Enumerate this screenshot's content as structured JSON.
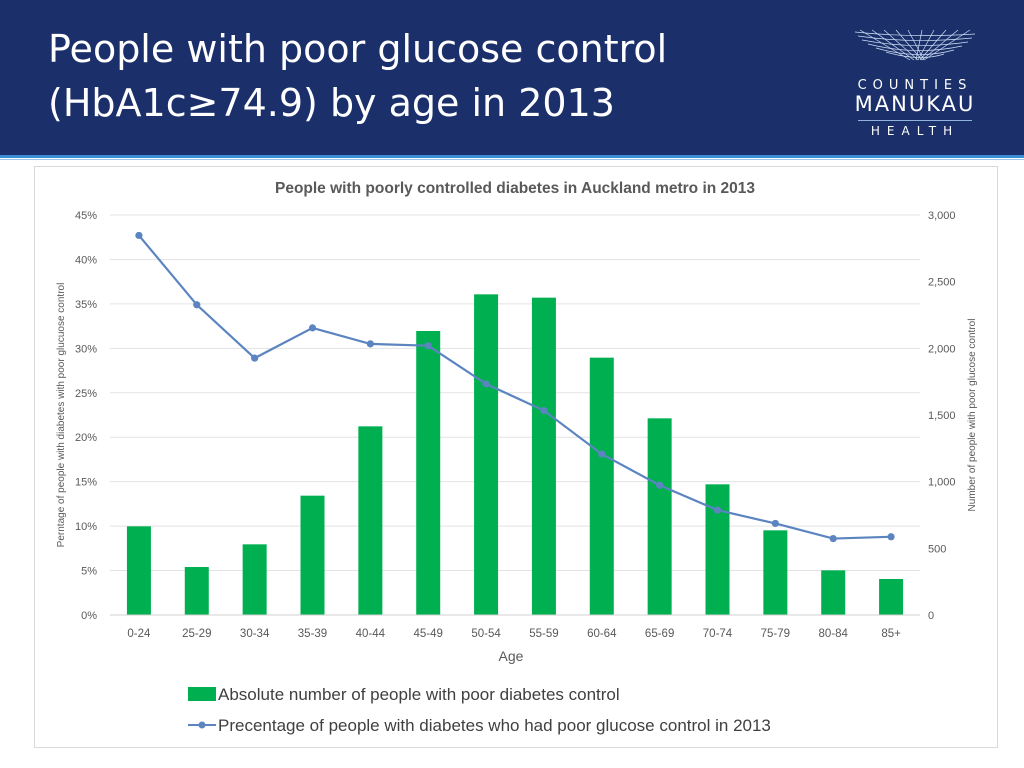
{
  "slide": {
    "title_line1": "People with poor glucose control",
    "title_line2": "(HbA1c≥74.9) by age in 2013"
  },
  "logo": {
    "word1": "COUNTIES",
    "word2": "MANUKAU",
    "word3": "HEALTH"
  },
  "colors": {
    "banner": "#1b2f6a",
    "bar": "#00b050",
    "line": "#5b84c0"
  },
  "chart_data": {
    "type": "bar",
    "title": "People with poorly controlled diabetes in Auckland metro in 2013",
    "xlabel": "Age",
    "ylabel_left": "Perntage of people with diabetes with poor glucuose control",
    "ylabel_right": "Number of people with poor glucose control",
    "categories": [
      "0-24",
      "25-29",
      "30-34",
      "35-39",
      "40-44",
      "45-49",
      "50-54",
      "55-59",
      "60-64",
      "65-69",
      "70-74",
      "75-79",
      "80-84",
      "85+"
    ],
    "y_left_ticks": [
      "0%",
      "5%",
      "10%",
      "15%",
      "20%",
      "25%",
      "30%",
      "35%",
      "40%",
      "45%"
    ],
    "y_right_ticks": [
      "0",
      "500",
      "1,000",
      "1,500",
      "2,000",
      "2,500",
      "3,000"
    ],
    "ylim_left": [
      0,
      45
    ],
    "ylim_right": [
      0,
      3000
    ],
    "grid": true,
    "legend_position": "bottom",
    "series": [
      {
        "name": "Absolute number of people with poor diabetes control",
        "type": "bar",
        "axis": "right",
        "values": [
          665,
          360,
          530,
          895,
          1415,
          2130,
          2405,
          2380,
          1930,
          1475,
          980,
          635,
          335,
          270
        ]
      },
      {
        "name": "Precentage of people with diabetes who had poor glucose control in 2013",
        "type": "line",
        "axis": "left",
        "values": [
          42.7,
          34.9,
          28.9,
          32.3,
          30.5,
          30.3,
          26.0,
          23.0,
          18.1,
          14.6,
          11.8,
          10.3,
          8.6,
          8.8
        ]
      }
    ]
  }
}
